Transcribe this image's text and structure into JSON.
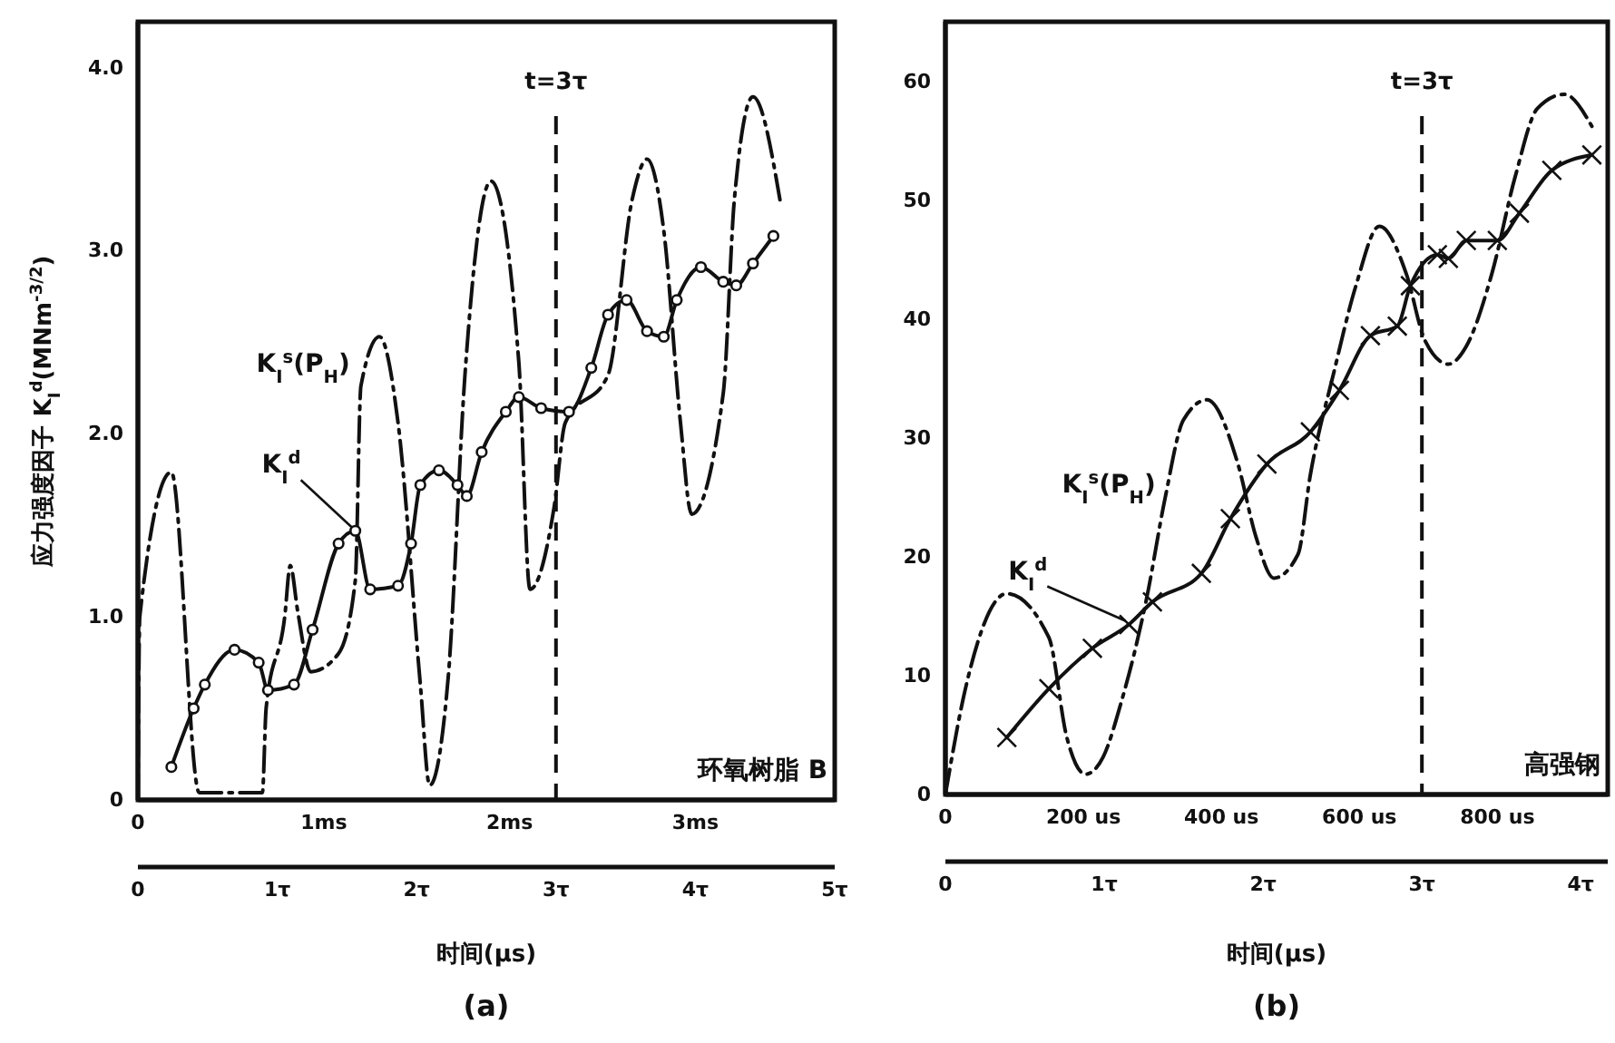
{
  "chart_data": [
    {
      "type": "line",
      "title": "(a)",
      "xlabel": "时间(μs)",
      "ylabel": "应力强度因子 K$_{I}$$^{d}$(MNm$^{-3/2}$)",
      "xlim": [
        0,
        3.75
      ],
      "xticks": [
        0,
        {
          "value": 1,
          "label": "1ms"
        },
        {
          "value": 2,
          "label": "2ms"
        },
        {
          "value": 3,
          "label": "3ms"
        }
      ],
      "x2lim": [
        0,
        5
      ],
      "x2ticks": [
        0,
        {
          "value": 1,
          "label": "1τ"
        },
        {
          "value": 2,
          "label": "2τ"
        },
        {
          "value": 3,
          "label": "3τ"
        },
        {
          "value": 4,
          "label": "4τ"
        },
        {
          "value": 5,
          "label": "5τ"
        }
      ],
      "ylim": [
        0,
        4.25
      ],
      "yticks": [
        0,
        {
          "value": 1,
          "label": "1.0"
        },
        {
          "value": 2,
          "label": "2.0"
        },
        {
          "value": 3,
          "label": "3.0"
        },
        {
          "value": 4,
          "label": "4.0"
        }
      ],
      "series": [
        {
          "name": "K$_{I}$$^{s}$(P$_{H}$)",
          "color": "#111111",
          "line_style": "dashed",
          "marker": "none",
          "x": [
            0,
            0.01,
            0.18,
            0.33,
            0.67,
            0.69,
            0.79,
            0.82,
            0.86,
            0.93,
            1.08,
            1.17,
            1.2,
            1.3,
            1.4,
            1.52,
            1.57,
            1.67,
            1.76,
            1.9,
            2.05,
            2.11,
            2.24,
            2.3,
            2.53,
            2.66,
            2.74,
            2.83,
            2.92,
            2.98,
            3.15,
            3.21,
            3.31,
            3.46
          ],
          "values": [
            0,
            1.0,
            1.79,
            0.04,
            0.04,
            0.5,
            1.0,
            1.28,
            1.03,
            0.7,
            0.8,
            1.2,
            2.26,
            2.53,
            2.06,
            0.63,
            0.08,
            0.67,
            2.32,
            3.38,
            2.39,
            1.15,
            1.6,
            2.06,
            2.32,
            3.28,
            3.5,
            3.11,
            2.06,
            1.56,
            2.22,
            3.28,
            3.84,
            3.25
          ]
        },
        {
          "name": "K$_{I}$$^{d}$",
          "color": "#111111",
          "line_style": "solid",
          "marker": "circle",
          "x": [
            0.18,
            0.3,
            0.36,
            0.52,
            0.65,
            0.7,
            0.84,
            0.94,
            1.08,
            1.17,
            1.25,
            1.4,
            1.47,
            1.52,
            1.62,
            1.72,
            1.77,
            1.85,
            1.98,
            2.05,
            2.17,
            2.32,
            2.44,
            2.53,
            2.63,
            2.74,
            2.83,
            2.9,
            3.03,
            3.15,
            3.22,
            3.31,
            3.42
          ],
          "values": [
            0.18,
            0.5,
            0.63,
            0.82,
            0.75,
            0.6,
            0.63,
            0.93,
            1.4,
            1.47,
            1.15,
            1.17,
            1.4,
            1.72,
            1.8,
            1.72,
            1.66,
            1.9,
            2.12,
            2.2,
            2.14,
            2.12,
            2.36,
            2.65,
            2.73,
            2.56,
            2.53,
            2.73,
            2.91,
            2.83,
            2.81,
            2.93,
            3.08
          ]
        }
      ],
      "ref_lines": [
        {
          "axis": "x2",
          "value": 3,
          "label": "t=3τ",
          "line_style": "dashed"
        }
      ],
      "annotations": [
        "环氧树脂 B"
      ]
    },
    {
      "type": "line",
      "title": "(b)",
      "xlabel": "时间(μs)",
      "xlim": [
        0,
        960
      ],
      "xticks": [
        0,
        {
          "value": 200,
          "label": "200 us"
        },
        {
          "value": 400,
          "label": "400 us"
        },
        {
          "value": 600,
          "label": "600 us"
        },
        {
          "value": 800,
          "label": "800 us"
        }
      ],
      "x2lim": [
        0,
        4.17
      ],
      "x2ticks": [
        0,
        {
          "value": 1,
          "label": "1τ"
        },
        {
          "value": 2,
          "label": "2τ"
        },
        {
          "value": 3,
          "label": "3τ"
        },
        {
          "value": 4,
          "label": "4τ"
        }
      ],
      "ylim": [
        0,
        65
      ],
      "yticks": [
        0,
        10,
        20,
        30,
        40,
        50,
        60
      ],
      "series": [
        {
          "name": "K$_{I}$$^{s}$(P$_{H}$)",
          "color": "#111111",
          "line_style": "dashed",
          "marker": "none",
          "x": [
            0,
            29,
            89,
            150,
            176,
            203,
            229,
            255,
            292,
            318,
            345,
            379,
            424,
            450,
            476,
            511,
            529,
            563,
            595,
            629,
            668,
            695,
            729,
            755,
            792,
            826,
            858,
            897,
            937
          ],
          "values": [
            0,
            8.9,
            16.9,
            13.2,
            4.8,
            1.7,
            3.2,
            7.8,
            16.6,
            24.8,
            31.5,
            33.2,
            27.8,
            21.7,
            18.2,
            20.2,
            26.9,
            35.5,
            42.8,
            47.8,
            43.8,
            38.2,
            36.2,
            37.7,
            43.8,
            52,
            57.7,
            58.9,
            56.2
          ]
        },
        {
          "name": "K$_{I}$$^{d}$",
          "color": "#111111",
          "line_style": "solid",
          "marker": "cross",
          "x": [
            89,
            150,
            213,
            266,
            300,
            371,
            413,
            466,
            529,
            571,
            616,
            655,
            674,
            713,
            729,
            755,
            800,
            832,
            879,
            937
          ],
          "values": [
            4.8,
            8.9,
            12.3,
            14.3,
            16.2,
            18.6,
            23.2,
            27.8,
            30.5,
            34,
            38.6,
            39.4,
            42.8,
            45.4,
            45.1,
            46.6,
            46.6,
            48.9,
            52.5,
            53.8
          ]
        }
      ],
      "ref_lines": [
        {
          "axis": "x2",
          "value": 3,
          "label": "t=3τ",
          "line_style": "dashed"
        }
      ],
      "annotations": [
        "高强钢"
      ]
    }
  ]
}
